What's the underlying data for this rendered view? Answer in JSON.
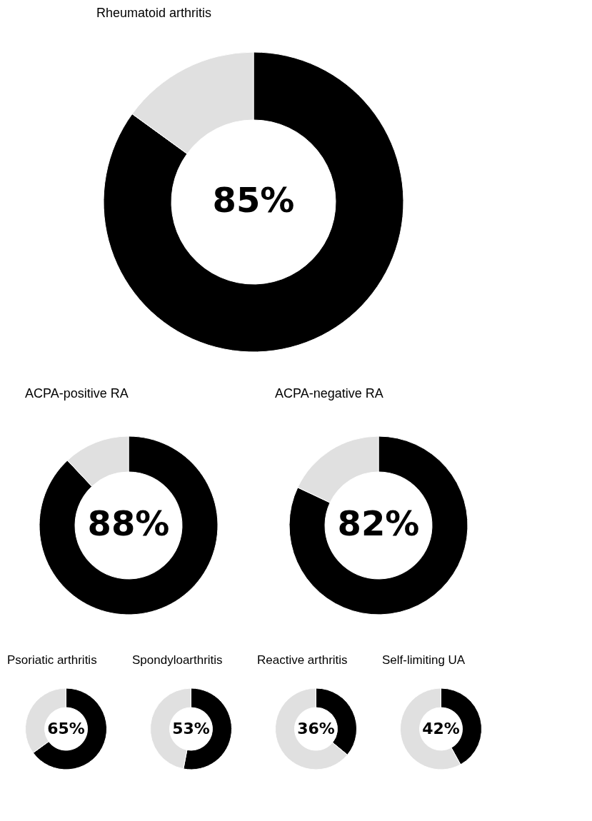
{
  "chart_data": [
    {
      "type": "donut",
      "title": "Rheumatoid arthritis",
      "categories": [
        null,
        null
      ],
      "values": [
        85,
        15
      ],
      "colors": [
        "#000000",
        "#e0e0e0"
      ],
      "value_labels": [
        "85%",
        null
      ]
    },
    {
      "type": "donut",
      "title": "ACPA-positive RA",
      "categories": [
        null,
        null
      ],
      "values": [
        88,
        12
      ],
      "colors": [
        "#000000",
        "#e0e0e0"
      ],
      "value_labels": [
        "88%",
        null
      ]
    },
    {
      "type": "donut",
      "title": "ACPA-negative RA",
      "categories": [
        null,
        null
      ],
      "values": [
        82,
        18
      ],
      "colors": [
        "#000000",
        "#e0e0e0"
      ],
      "value_labels": [
        "82%",
        null
      ]
    },
    {
      "type": "donut",
      "title": "Psoriatic arthritis",
      "categories": [
        null,
        null
      ],
      "values": [
        65,
        35
      ],
      "colors": [
        "#000000",
        "#e0e0e0"
      ],
      "value_labels": [
        "65%",
        null
      ]
    },
    {
      "type": "donut",
      "title": "Spondyloarthritis",
      "categories": [
        null,
        null
      ],
      "values": [
        53,
        47
      ],
      "colors": [
        "#000000",
        "#e0e0e0"
      ],
      "value_labels": [
        "53%",
        null
      ]
    },
    {
      "type": "donut",
      "title": "Reactive arthritis",
      "categories": [
        null,
        null
      ],
      "values": [
        36,
        64
      ],
      "colors": [
        "#000000",
        "#e0e0e0"
      ],
      "value_labels": [
        "36%",
        null
      ]
    },
    {
      "type": "donut",
      "title": "Self-limiting UA",
      "categories": [
        null,
        null
      ],
      "values": [
        42,
        58
      ],
      "colors": [
        "#000000",
        "#e0e0e0"
      ],
      "value_labels": [
        "42%",
        null
      ]
    }
  ]
}
